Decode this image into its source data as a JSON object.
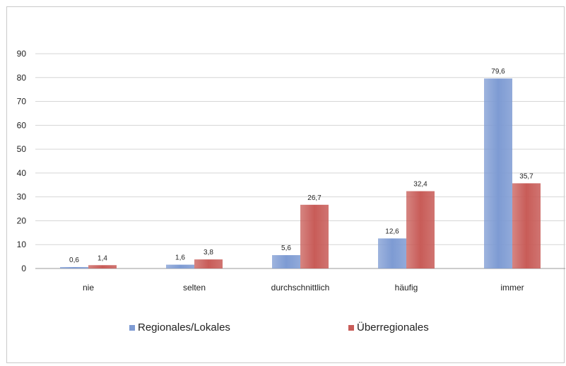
{
  "chart_data": {
    "type": "bar",
    "categories": [
      "nie",
      "selten",
      "durchschnittlich",
      "häufig",
      "immer"
    ],
    "series": [
      {
        "name": "Regionales/Lokales",
        "values": [
          0.6,
          1.6,
          5.6,
          12.6,
          79.6
        ],
        "labels": [
          "0,6",
          "1,6",
          "5,6",
          "12,6",
          "79,6"
        ],
        "color": "#7e9bd3"
      },
      {
        "name": "Überregionales",
        "values": [
          1.4,
          3.8,
          26.7,
          32.4,
          35.7
        ],
        "labels": [
          "1,4",
          "3,8",
          "26,7",
          "32,4",
          "35,7"
        ],
        "color": "#c85c58"
      }
    ],
    "yticks": [
      "0",
      "10",
      "20",
      "30",
      "40",
      "50",
      "60",
      "70",
      "80",
      "90"
    ],
    "ylim": [
      0,
      90
    ],
    "grid": true,
    "legend_position": "bottom"
  }
}
